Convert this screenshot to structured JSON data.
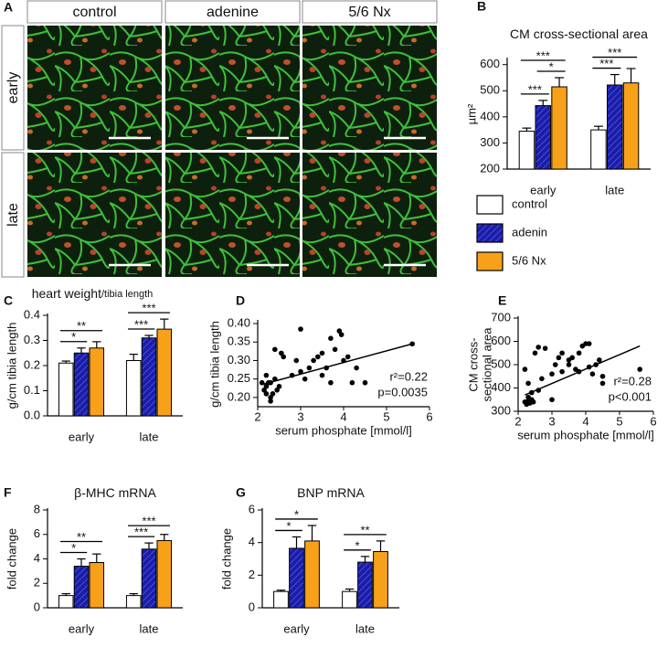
{
  "image_panel": {
    "panel": "A",
    "columns": [
      "control",
      "adenine",
      "5/6 Nx"
    ],
    "rows": [
      "early",
      "late"
    ]
  },
  "chart_data": [
    {
      "type": "bar",
      "panel": "B",
      "title": "CM cross-sectional area",
      "ylabel": "µm²",
      "categories": [
        "early",
        "late"
      ],
      "series": [
        {
          "name": "control",
          "color": "#ffffff",
          "values": [
            345,
            350
          ],
          "errors": [
            12,
            14
          ]
        },
        {
          "name": "adenin",
          "color": "#1c1ca8",
          "hatch": true,
          "values": [
            443,
            522
          ],
          "errors": [
            20,
            40
          ]
        },
        {
          "name": "5/6 Nx",
          "color": "#f7a11a",
          "values": [
            515,
            530
          ],
          "errors": [
            35,
            55
          ]
        }
      ],
      "ylim": [
        200,
        620
      ],
      "yticks": [
        200,
        300,
        400,
        500,
        600
      ],
      "brackets": [
        {
          "text": "***",
          "group": 0,
          "between": [
            0,
            1
          ]
        },
        {
          "text": "*",
          "group": 0,
          "between": [
            1,
            2
          ]
        },
        {
          "text": "***",
          "group": 0,
          "between": [
            0,
            2
          ]
        },
        {
          "text": "***",
          "group": 1,
          "between": [
            0,
            1
          ]
        },
        {
          "text": "***",
          "group": 1,
          "between": [
            0,
            2
          ]
        }
      ],
      "legend": "below"
    },
    {
      "type": "bar",
      "panel": "C",
      "title": "heart weight",
      "title_suffix": "/tibia length",
      "ylabel": "g/cm tibia length",
      "categories": [
        "early",
        "late"
      ],
      "series": [
        {
          "color": "#ffffff",
          "values": [
            0.21,
            0.22
          ],
          "errors": [
            0.008,
            0.025
          ]
        },
        {
          "color": "#1c1ca8",
          "hatch": true,
          "values": [
            0.25,
            0.31
          ],
          "errors": [
            0.02,
            0.01
          ]
        },
        {
          "color": "#f7a11a",
          "values": [
            0.27,
            0.345
          ],
          "errors": [
            0.025,
            0.04
          ]
        }
      ],
      "ylim": [
        0,
        0.4
      ],
      "yticks": [
        {
          "value": 0,
          "label": "0.0"
        },
        0.1,
        0.2,
        0.3,
        0.4
      ],
      "brackets": [
        {
          "text": "*",
          "group": 0,
          "between": [
            0,
            1
          ]
        },
        {
          "text": "**",
          "group": 0,
          "between": [
            0,
            2
          ]
        },
        {
          "text": "***",
          "group": 1,
          "between": [
            0,
            1
          ]
        },
        {
          "text": "***",
          "group": 1,
          "between": [
            0,
            2
          ]
        }
      ]
    },
    {
      "type": "scatter",
      "panel": "D",
      "ylabel": "g/cm tibia length",
      "xlabel": "serum phosphate [mmol/l]",
      "color": "#000000",
      "x": [
        2.1,
        2.15,
        2.2,
        2.2,
        2.25,
        2.3,
        2.3,
        2.35,
        2.4,
        2.4,
        2.45,
        2.5,
        2.55,
        2.6,
        2.2,
        2.3,
        2.8,
        2.9,
        3.0,
        3.0,
        3.2,
        3.3,
        3.4,
        3.5,
        3.5,
        3.6,
        3.7,
        3.8,
        3.9,
        3.95,
        4.0,
        4.1,
        4.2,
        4.3,
        4.5,
        5.6,
        3.7,
        3.1
      ],
      "values": [
        0.24,
        0.22,
        0.21,
        0.23,
        0.24,
        0.19,
        0.2,
        0.21,
        0.25,
        0.33,
        0.22,
        0.23,
        0.32,
        0.31,
        0.26,
        0.24,
        0.26,
        0.3,
        0.385,
        0.27,
        0.28,
        0.3,
        0.31,
        0.32,
        0.26,
        0.28,
        0.24,
        0.33,
        0.38,
        0.37,
        0.3,
        0.31,
        0.24,
        0.28,
        0.24,
        0.345,
        0.36,
        0.25
      ],
      "fit": {
        "x": [
          2.1,
          5.6
        ],
        "y": [
          0.235,
          0.345
        ]
      },
      "xlim": [
        2,
        6
      ],
      "xticks": [
        2,
        3,
        4,
        5,
        6
      ],
      "ylim": [
        0.175,
        0.405
      ],
      "yticks": [
        {
          "value": 0.2,
          "label": "0.20"
        },
        0.25,
        {
          "value": 0.3,
          "label": "0.30"
        },
        0.35,
        {
          "value": 0.4,
          "label": "0.40"
        }
      ],
      "annotations": [
        "r²=0.22",
        "p=0.0035"
      ]
    },
    {
      "type": "scatter",
      "panel": "E",
      "ylabel": [
        "CM cross-",
        "sectional area"
      ],
      "xlabel": "serum phosphate [mmol/l]",
      "color": "#000000",
      "x": [
        2.2,
        2.25,
        2.3,
        2.3,
        2.35,
        2.4,
        2.4,
        2.45,
        2.2,
        2.3,
        2.5,
        2.6,
        2.7,
        2.8,
        3.0,
        3.1,
        3.2,
        3.3,
        3.3,
        3.5,
        3.5,
        3.6,
        3.7,
        3.8,
        3.8,
        3.9,
        4.0,
        4.1,
        4.1,
        4.2,
        4.3,
        4.4,
        4.5,
        4.5,
        5.6,
        3.0,
        2.6
      ],
      "values": [
        340,
        330,
        345,
        360,
        335,
        350,
        380,
        340,
        480,
        420,
        550,
        575,
        440,
        570,
        460,
        500,
        530,
        550,
        470,
        500,
        520,
        530,
        480,
        470,
        550,
        580,
        590,
        590,
        490,
        460,
        500,
        520,
        420,
        450,
        480,
        350,
        390
      ],
      "fit": {
        "x": [
          2.2,
          5.6
        ],
        "y": [
          370,
          580
        ]
      },
      "xlim": [
        2,
        6
      ],
      "xticks": [
        2,
        3,
        4,
        5,
        6
      ],
      "ylim": [
        300,
        700
      ],
      "yticks": [
        300,
        400,
        500,
        600,
        700
      ],
      "annotations": [
        "r²=0.28",
        "p<0.001"
      ]
    },
    {
      "type": "bar",
      "panel": "F",
      "title": "β-MHC mRNA",
      "ylabel": "fold change",
      "categories": [
        "early",
        "late"
      ],
      "series": [
        {
          "color": "#ffffff",
          "values": [
            1.0,
            1.0
          ],
          "errors": [
            0.15,
            0.15
          ]
        },
        {
          "color": "#1c1ca8",
          "hatch": true,
          "values": [
            3.4,
            4.8
          ],
          "errors": [
            0.6,
            0.5
          ]
        },
        {
          "color": "#f7a11a",
          "values": [
            3.7,
            5.5
          ],
          "errors": [
            0.7,
            0.5
          ]
        }
      ],
      "ylim": [
        0,
        8
      ],
      "yticks": [
        0,
        2,
        4,
        6,
        8
      ],
      "brackets": [
        {
          "text": "*",
          "group": 0,
          "between": [
            0,
            1
          ]
        },
        {
          "text": "**",
          "group": 0,
          "between": [
            0,
            2
          ]
        },
        {
          "text": "***",
          "group": 1,
          "between": [
            0,
            1
          ]
        },
        {
          "text": "***",
          "group": 1,
          "between": [
            0,
            2
          ]
        }
      ]
    },
    {
      "type": "bar",
      "panel": "G",
      "title": "BNP mRNA",
      "ylabel": "fold change",
      "categories": [
        "early",
        "late"
      ],
      "series": [
        {
          "color": "#ffffff",
          "values": [
            1.0,
            1.0
          ],
          "errors": [
            0.08,
            0.15
          ]
        },
        {
          "color": "#1c1ca8",
          "hatch": true,
          "values": [
            3.65,
            2.8
          ],
          "errors": [
            0.7,
            0.35
          ]
        },
        {
          "color": "#f7a11a",
          "values": [
            4.1,
            3.45
          ],
          "errors": [
            0.95,
            0.65
          ]
        }
      ],
      "ylim": [
        0,
        6
      ],
      "yticks": [
        0,
        2,
        4,
        6
      ],
      "brackets": [
        {
          "text": "*",
          "group": 0,
          "between": [
            0,
            1
          ]
        },
        {
          "text": "*",
          "group": 0,
          "between": [
            0,
            2
          ]
        },
        {
          "text": "*",
          "group": 1,
          "between": [
            0,
            1
          ]
        },
        {
          "text": "**",
          "group": 1,
          "between": [
            0,
            2
          ]
        }
      ]
    }
  ]
}
